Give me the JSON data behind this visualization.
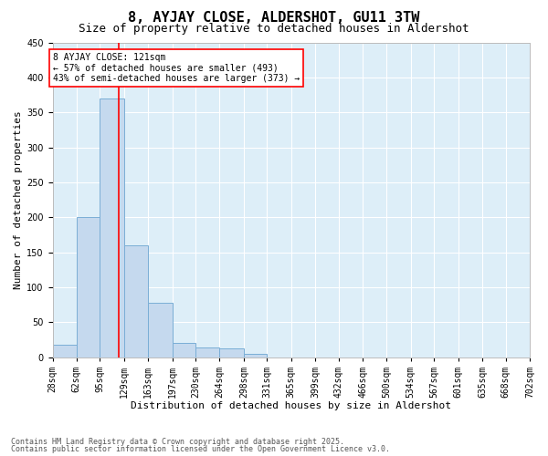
{
  "title": "8, AYJAY CLOSE, ALDERSHOT, GU11 3TW",
  "subtitle": "Size of property relative to detached houses in Aldershot",
  "xlabel": "Distribution of detached houses by size in Aldershot",
  "ylabel": "Number of detached properties",
  "bin_edges": [
    28,
    62,
    95,
    129,
    163,
    197,
    230,
    264,
    298,
    331,
    365,
    399,
    432,
    466,
    500,
    534,
    567,
    601,
    635,
    668,
    702
  ],
  "bar_values": [
    18,
    200,
    370,
    160,
    78,
    20,
    14,
    13,
    5,
    0,
    0,
    0,
    0,
    0,
    0,
    0,
    0,
    0,
    0,
    0
  ],
  "bar_color": "#c5d9ee",
  "bar_edge_color": "#7aaed6",
  "vline_x": 121,
  "vline_color": "red",
  "annotation_text": "8 AYJAY CLOSE: 121sqm\n← 57% of detached houses are smaller (493)\n43% of semi-detached houses are larger (373) →",
  "annotation_box_color": "red",
  "annotation_fill": "white",
  "ylim": [
    0,
    450
  ],
  "yticks": [
    0,
    50,
    100,
    150,
    200,
    250,
    300,
    350,
    400,
    450
  ],
  "bg_color": "#ddeef8",
  "grid_color": "white",
  "footer_line1": "Contains HM Land Registry data © Crown copyright and database right 2025.",
  "footer_line2": "Contains public sector information licensed under the Open Government Licence v3.0.",
  "title_fontsize": 11,
  "subtitle_fontsize": 9,
  "xlabel_fontsize": 8,
  "ylabel_fontsize": 8,
  "tick_fontsize": 7,
  "annotation_fontsize": 7,
  "footer_fontsize": 6
}
